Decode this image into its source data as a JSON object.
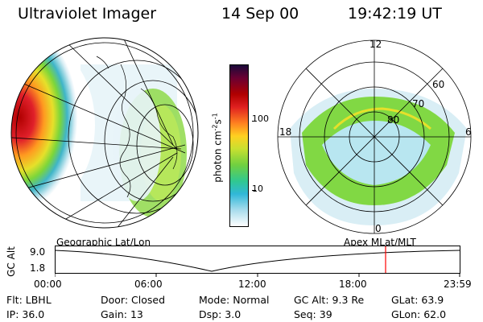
{
  "header": {
    "instrument": "Ultraviolet Imager",
    "date": "14 Sep 00",
    "time": "19:42:19 UT"
  },
  "colorbar": {
    "label": "photon cm",
    "label_exponent": "-2",
    "label_tail": "s",
    "label_exponent2": "-1",
    "tick_labels": [
      "100",
      "10"
    ]
  },
  "polar_plot": {
    "mlt_labels": {
      "top": "12",
      "left": "18",
      "right": "6",
      "bottom": "0"
    },
    "mlat_labels": [
      "60",
      "70",
      "80"
    ]
  },
  "timeline": {
    "axis_label": "GC Alt",
    "y_labels": [
      "9.0",
      "1.8"
    ],
    "left_panel_label": "Geographic Lat/Lon",
    "right_panel_label": "Apex  MLat/MLT",
    "time_labels": [
      "00:00",
      "06:00",
      "12:00",
      "18:00",
      "23:59"
    ],
    "current_marker_color": "#ff0000"
  },
  "status": {
    "row1": [
      {
        "label": "Flt:",
        "value": "LBHL"
      },
      {
        "label": "Door:",
        "value": "Closed"
      },
      {
        "label": "Mode:",
        "value": "Normal"
      },
      {
        "label": "GC Alt:",
        "value": "9.3 Re"
      },
      {
        "label": "GLat:",
        "value": "63.9"
      }
    ],
    "row2": [
      {
        "label": "IP:",
        "value": "36.0"
      },
      {
        "label": "Gain:",
        "value": "13"
      },
      {
        "label": "Dsp:",
        "value": "3.0"
      },
      {
        "label": "Seq:",
        "value": "39"
      },
      {
        "label": "GLon:",
        "value": "62.0"
      }
    ]
  }
}
